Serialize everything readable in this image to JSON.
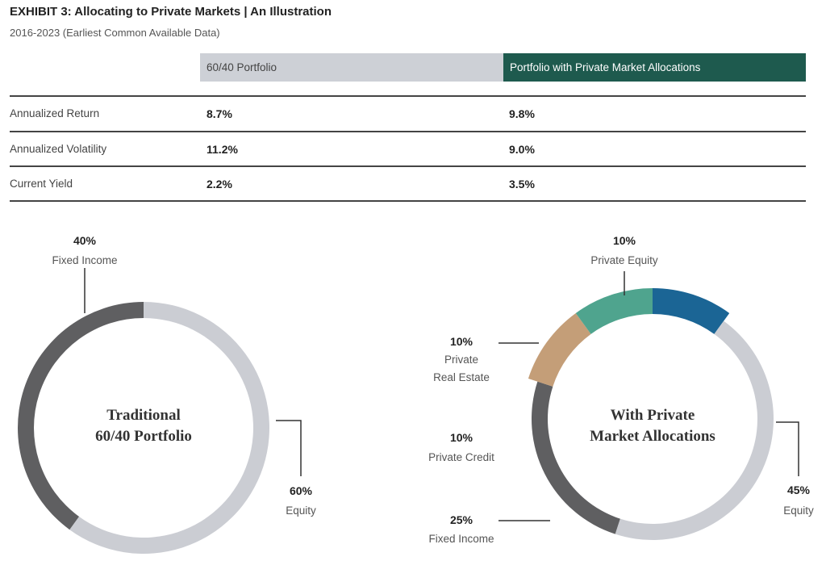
{
  "header": {
    "title": "EXHIBIT 3:  Allocating to Private Markets | An Illustration",
    "subtitle": "2016-2023 (Earliest Common Available Data)"
  },
  "table": {
    "columns": [
      "60/40 Portfolio",
      "Portfolio with Private Market Allocations"
    ],
    "rows": [
      {
        "label": "Annualized Return",
        "values": [
          "8.7%",
          "9.8%"
        ]
      },
      {
        "label": "Annualized Volatility",
        "values": [
          "11.2%",
          "9.0%"
        ]
      },
      {
        "label": "Current Yield",
        "values": [
          "2.2%",
          "3.5%"
        ]
      }
    ]
  },
  "colors": {
    "fixed_income": "#5f5f61",
    "equity": "#cbcdd3",
    "private_equity": "#1b6595",
    "private_real_estate": "#4fa48e",
    "private_credit": "#c49e78",
    "header_green": "#1e5a4e"
  },
  "chart_data": [
    {
      "type": "pie",
      "title": "Traditional 60/40 Portfolio",
      "title_lines": [
        "Traditional",
        "60/40 Portfolio"
      ],
      "slices": [
        {
          "name": "Fixed Income",
          "value": 40,
          "label": "40%",
          "color": "#5f5f61"
        },
        {
          "name": "Equity",
          "value": 60,
          "label": "60%",
          "color": "#cbcdd3"
        }
      ]
    },
    {
      "type": "pie",
      "title": "With Private Market Allocations",
      "title_lines": [
        "With Private",
        "Market Allocations"
      ],
      "slices": [
        {
          "name": "Private Equity",
          "value": 10,
          "label": "10%",
          "color": "#1b6595"
        },
        {
          "name": "Equity",
          "value": 45,
          "label": "45%",
          "color": "#cbcdd3"
        },
        {
          "name": "Fixed Income",
          "value": 25,
          "label": "25%",
          "color": "#5f5f61"
        },
        {
          "name": "Private Credit",
          "value": 10,
          "label": "10%",
          "color": "#c49e78"
        },
        {
          "name": "Private Real Estate",
          "value": 10,
          "label": "10%",
          "color": "#4fa48e",
          "name_lines": [
            "Private",
            "Real Estate"
          ]
        }
      ]
    }
  ]
}
